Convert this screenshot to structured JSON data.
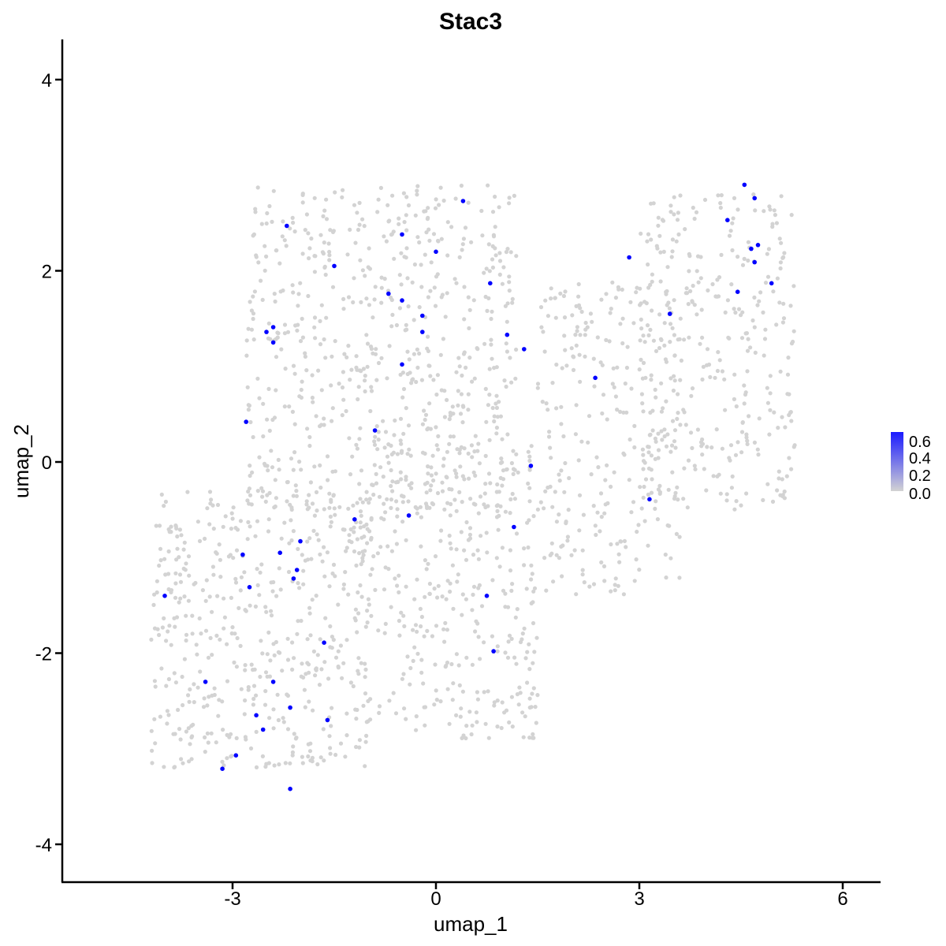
{
  "chart_data": {
    "type": "scatter",
    "title": "Stac3",
    "xlabel": "umap_1",
    "ylabel": "umap_2",
    "xlim": [
      -5.5,
      6.5
    ],
    "ylim": [
      -4.3,
      4.4
    ],
    "x_ticks": [
      -3,
      0,
      3,
      6
    ],
    "y_ticks": [
      -4,
      -2,
      0,
      2,
      4
    ],
    "x_tick_labels": [
      "-3",
      "0",
      "3",
      "6"
    ],
    "y_tick_labels": [
      "-4",
      "-2",
      "0",
      "2",
      "4"
    ],
    "grid": false,
    "legend": {
      "placement": "right",
      "type": "colorbar",
      "labels": [
        "0.6",
        "0.4",
        "0.2",
        "0.0"
      ],
      "range": [
        0.0,
        0.65
      ],
      "low_color": "#d3d3d3",
      "high_color": "#0000ff"
    },
    "colors": {
      "background_point": "#d3d3d3",
      "expressing_point": "#0000ff"
    },
    "background_cloud": {
      "description": "zero-expression cells (light grey), approximately 2000 points",
      "regions": [
        {
          "x": [
            -2.8,
            1.2
          ],
          "y": [
            -0.5,
            2.9
          ]
        },
        {
          "x": [
            -4.2,
            -1.0
          ],
          "y": [
            -3.2,
            -0.3
          ]
        },
        {
          "x": [
            -1.2,
            1.5
          ],
          "y": [
            -2.9,
            0.2
          ]
        },
        {
          "x": [
            1.5,
            3.6
          ],
          "y": [
            -1.4,
            1.9
          ]
        },
        {
          "x": [
            3.0,
            5.3
          ],
          "y": [
            -0.5,
            2.8
          ]
        }
      ]
    },
    "expressing_points": [
      {
        "x": -2.2,
        "y": 2.47
      },
      {
        "x": -0.5,
        "y": 2.38
      },
      {
        "x": 0.4,
        "y": 2.73
      },
      {
        "x": 0.0,
        "y": 2.2
      },
      {
        "x": -1.5,
        "y": 2.05
      },
      {
        "x": 0.8,
        "y": 1.87
      },
      {
        "x": -0.7,
        "y": 1.76
      },
      {
        "x": -0.5,
        "y": 1.69
      },
      {
        "x": -0.2,
        "y": 1.53
      },
      {
        "x": -2.4,
        "y": 1.41
      },
      {
        "x": -2.5,
        "y": 1.36
      },
      {
        "x": -0.2,
        "y": 1.36
      },
      {
        "x": -2.4,
        "y": 1.25
      },
      {
        "x": 1.05,
        "y": 1.33
      },
      {
        "x": 1.3,
        "y": 1.18
      },
      {
        "x": -0.5,
        "y": 1.02
      },
      {
        "x": 2.35,
        "y": 0.88
      },
      {
        "x": -2.8,
        "y": 0.42
      },
      {
        "x": -0.9,
        "y": 0.33
      },
      {
        "x": 1.4,
        "y": -0.04
      },
      {
        "x": 3.15,
        "y": -0.39
      },
      {
        "x": -0.4,
        "y": -0.56
      },
      {
        "x": -1.2,
        "y": -0.6
      },
      {
        "x": 1.15,
        "y": -0.68
      },
      {
        "x": -2.0,
        "y": -0.83
      },
      {
        "x": -2.3,
        "y": -0.95
      },
      {
        "x": -2.85,
        "y": -0.97
      },
      {
        "x": -2.05,
        "y": -1.13
      },
      {
        "x": -2.1,
        "y": -1.22
      },
      {
        "x": -2.75,
        "y": -1.31
      },
      {
        "x": -4.0,
        "y": -1.4
      },
      {
        "x": 0.75,
        "y": -1.4
      },
      {
        "x": -1.65,
        "y": -1.89
      },
      {
        "x": 0.85,
        "y": -1.98
      },
      {
        "x": -3.4,
        "y": -2.3
      },
      {
        "x": -2.4,
        "y": -2.3
      },
      {
        "x": -2.15,
        "y": -2.57
      },
      {
        "x": -2.65,
        "y": -2.65
      },
      {
        "x": -1.6,
        "y": -2.7
      },
      {
        "x": -2.55,
        "y": -2.8
      },
      {
        "x": -2.95,
        "y": -3.07
      },
      {
        "x": -3.15,
        "y": -3.21
      },
      {
        "x": -2.15,
        "y": -3.42
      },
      {
        "x": 4.55,
        "y": 2.9
      },
      {
        "x": 4.7,
        "y": 2.76
      },
      {
        "x": 4.3,
        "y": 2.53
      },
      {
        "x": 4.75,
        "y": 2.27
      },
      {
        "x": 4.65,
        "y": 2.23
      },
      {
        "x": 4.7,
        "y": 2.09
      },
      {
        "x": 4.95,
        "y": 1.87
      },
      {
        "x": 4.45,
        "y": 1.78
      },
      {
        "x": 2.85,
        "y": 2.14
      },
      {
        "x": 3.45,
        "y": 1.55
      }
    ]
  }
}
